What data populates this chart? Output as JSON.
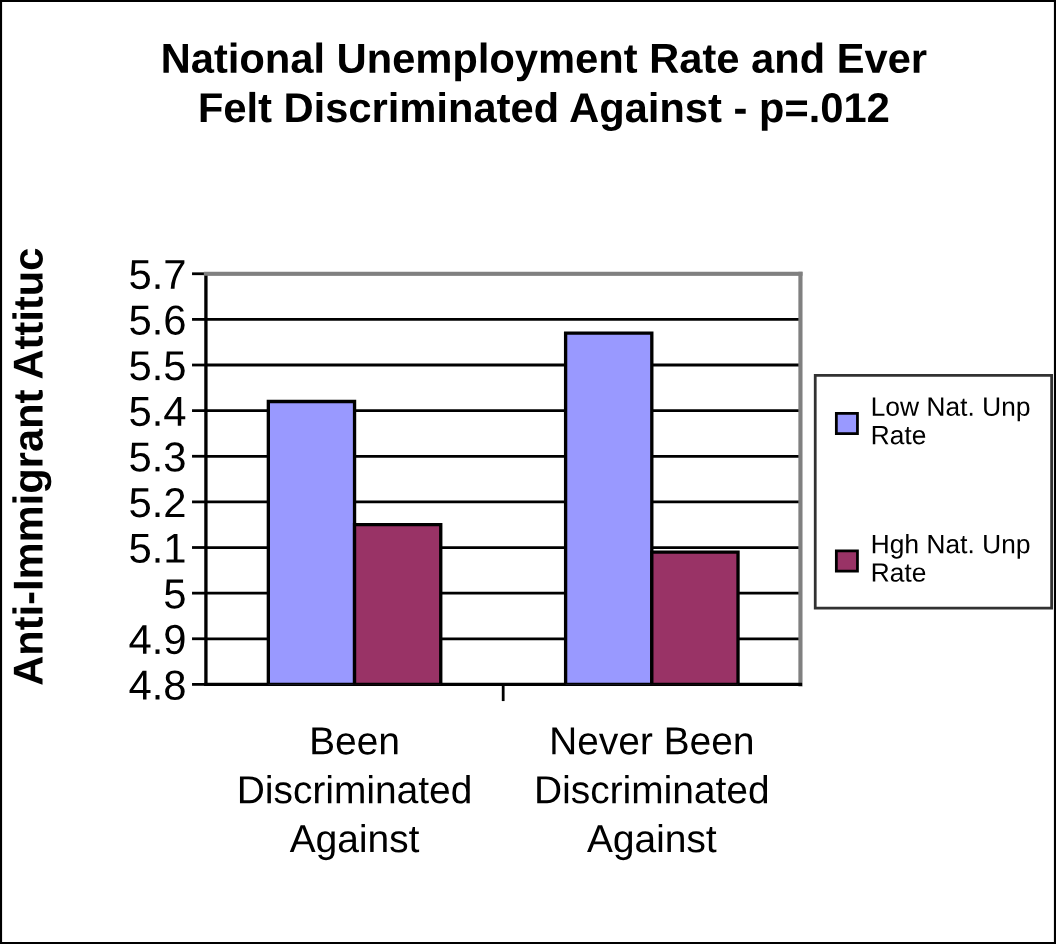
{
  "chart_data": {
    "type": "bar",
    "title": "National Unemployment Rate and Ever\nFelt Discriminated Against - p=.012",
    "ylabel": "Anti-Immigrant Attituc",
    "categories": [
      "Been\nDiscriminated\nAgainst",
      "Never Been\nDiscriminated\nAgainst"
    ],
    "series": [
      {
        "name": "Low Nat. Unp\nRate",
        "color": "#9999ff",
        "values": [
          5.42,
          5.57
        ]
      },
      {
        "name": "Hgh Nat. Unp\nRate",
        "color": "#993366",
        "values": [
          5.15,
          5.09
        ]
      }
    ],
    "ylim": [
      4.8,
      5.7
    ],
    "yticks": [
      4.8,
      4.9,
      5,
      5.1,
      5.2,
      5.3,
      5.4,
      5.5,
      5.6,
      5.7
    ],
    "grid": "y",
    "legend": "right"
  }
}
